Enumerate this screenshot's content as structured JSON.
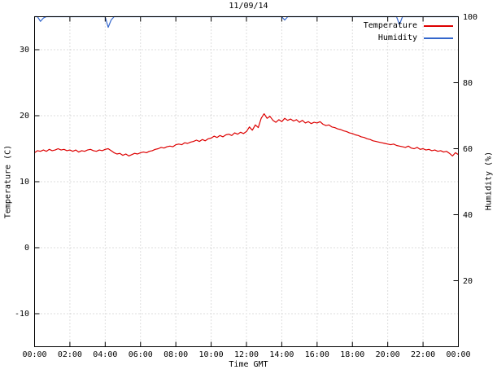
{
  "chart_data": {
    "type": "line",
    "title": "11/09/14",
    "xlabel": "Time GMT",
    "ylabel": "Temperature (C)",
    "y2label": "Humidity (%)",
    "grid": true,
    "legend": {
      "position": "top-right-inside"
    },
    "x_range": [
      0,
      24
    ],
    "x_tick_interval_hours": 2,
    "x_tick_labels": [
      "00:00",
      "02:00",
      "04:00",
      "06:00",
      "08:00",
      "10:00",
      "12:00",
      "14:00",
      "16:00",
      "18:00",
      "20:00",
      "22:00",
      "00:00"
    ],
    "y_range": [
      -15,
      35
    ],
    "y_ticks": [
      -10,
      0,
      10,
      20,
      30
    ],
    "y2_range": [
      0,
      100
    ],
    "y2_ticks": [
      20,
      40,
      60,
      80,
      100
    ],
    "sample_step_minutes": 10,
    "colors": {
      "temperature": "#dd0000",
      "humidity": "#3366cc",
      "grid": "#bdbdbd",
      "axis": "#000000"
    },
    "series": [
      {
        "name": "Temperature",
        "axis": "y1",
        "color": "#dd0000",
        "values": [
          14.4,
          14.7,
          14.6,
          14.8,
          14.6,
          14.9,
          14.7,
          14.8,
          15.0,
          14.8,
          14.9,
          14.7,
          14.8,
          14.6,
          14.8,
          14.5,
          14.7,
          14.6,
          14.8,
          14.9,
          14.7,
          14.6,
          14.8,
          14.7,
          14.9,
          15.0,
          14.7,
          14.4,
          14.2,
          14.3,
          14.0,
          14.2,
          13.9,
          14.1,
          14.3,
          14.2,
          14.4,
          14.5,
          14.4,
          14.6,
          14.7,
          14.9,
          15.0,
          15.2,
          15.1,
          15.3,
          15.4,
          15.3,
          15.6,
          15.7,
          15.6,
          15.9,
          15.8,
          16.0,
          16.1,
          16.3,
          16.1,
          16.4,
          16.2,
          16.5,
          16.6,
          16.9,
          16.7,
          17.0,
          16.8,
          17.1,
          17.2,
          17.0,
          17.4,
          17.2,
          17.5,
          17.3,
          17.6,
          18.3,
          17.8,
          18.6,
          18.2,
          19.6,
          20.3,
          19.6,
          19.9,
          19.3,
          19.0,
          19.4,
          19.1,
          19.6,
          19.3,
          19.5,
          19.2,
          19.4,
          19.0,
          19.3,
          18.9,
          19.1,
          18.8,
          19.0,
          18.9,
          19.1,
          18.7,
          18.5,
          18.6,
          18.3,
          18.2,
          18.0,
          17.9,
          17.7,
          17.6,
          17.4,
          17.3,
          17.1,
          17.0,
          16.8,
          16.7,
          16.5,
          16.4,
          16.2,
          16.1,
          16.0,
          15.9,
          15.8,
          15.7,
          15.6,
          15.7,
          15.5,
          15.4,
          15.3,
          15.2,
          15.4,
          15.1,
          15.0,
          15.2,
          14.9,
          15.0,
          14.8,
          14.9,
          14.7,
          14.8,
          14.6,
          14.7,
          14.5,
          14.6,
          14.3,
          13.9,
          14.4,
          14.1
        ]
      },
      {
        "name": "Humidity",
        "axis": "y2",
        "color": "#3366cc",
        "values": [
          100,
          100,
          98.6,
          99.6,
          100,
          100,
          100,
          100,
          100,
          100,
          100,
          100,
          100,
          100,
          100,
          100,
          100,
          100,
          100,
          100,
          100,
          100,
          100,
          100,
          100,
          96.8,
          99.0,
          100,
          100,
          100,
          100,
          100,
          100,
          100,
          100,
          100,
          100,
          100,
          100,
          100,
          100,
          100,
          100,
          100,
          100,
          100,
          100,
          100,
          100,
          100,
          100,
          100,
          100,
          100,
          100,
          100,
          100,
          100,
          100,
          100,
          100,
          100,
          100,
          100,
          100,
          100,
          100,
          100,
          100,
          100,
          100,
          100,
          100,
          100,
          100,
          100,
          100,
          100,
          100,
          100,
          100,
          100,
          100,
          100,
          100,
          99.0,
          100,
          100,
          100,
          100,
          100,
          100,
          100,
          100,
          100,
          100,
          100,
          100,
          100,
          100,
          100,
          100,
          100,
          100,
          100,
          100,
          100,
          100,
          100,
          100,
          100,
          100,
          100,
          100,
          100,
          100,
          100,
          100,
          100,
          100,
          100,
          100,
          100,
          100,
          97.6,
          100,
          100,
          100,
          100,
          100,
          100,
          100,
          100,
          100,
          100,
          100,
          100,
          100,
          100,
          100,
          100,
          100,
          100,
          100,
          100
        ]
      }
    ]
  }
}
